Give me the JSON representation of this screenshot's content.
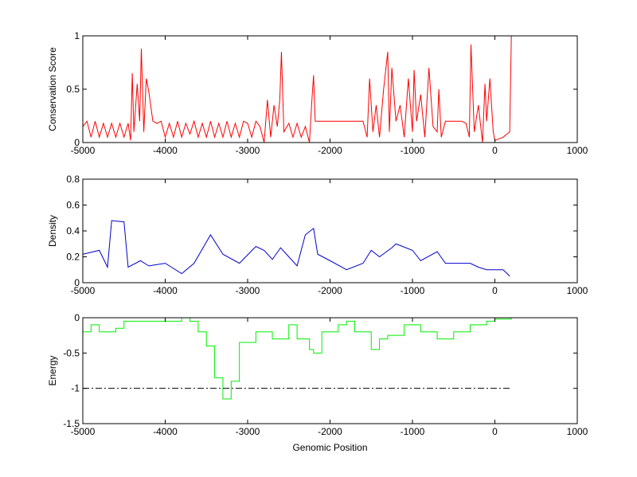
{
  "chart_data": [
    {
      "type": "line",
      "ylabel": "Conservation Score",
      "xlim": [
        -5000,
        1000
      ],
      "xticks": [
        -5000,
        -4000,
        -3000,
        -2000,
        -1000,
        0,
        1000
      ],
      "ylim": [
        0,
        1
      ],
      "yticks": [
        0,
        0.5,
        1
      ],
      "series": [
        {
          "color": "#ff0000",
          "x": [
            -5000,
            -4950,
            -4900,
            -4850,
            -4800,
            -4750,
            -4700,
            -4650,
            -4600,
            -4550,
            -4500,
            -4450,
            -4420,
            -4400,
            -4380,
            -4340,
            -4310,
            -4290,
            -4260,
            -4230,
            -4200,
            -4150,
            -4100,
            -4050,
            -4000,
            -3950,
            -3900,
            -3850,
            -3800,
            -3750,
            -3700,
            -3650,
            -3600,
            -3550,
            -3500,
            -3450,
            -3400,
            -3350,
            -3300,
            -3250,
            -3200,
            -3150,
            -3100,
            -3050,
            -3000,
            -2950,
            -2900,
            -2850,
            -2800,
            -2760,
            -2720,
            -2680,
            -2640,
            -2610,
            -2590,
            -2560,
            -2500,
            -2450,
            -2400,
            -2350,
            -2300,
            -2250,
            -2220,
            -2200,
            -2180,
            -2100,
            -2000,
            -1900,
            -1800,
            -1700,
            -1600,
            -1550,
            -1520,
            -1480,
            -1440,
            -1400,
            -1350,
            -1300,
            -1280,
            -1250,
            -1200,
            -1150,
            -1100,
            -1050,
            -1000,
            -980,
            -950,
            -900,
            -850,
            -800,
            -750,
            -700,
            -680,
            -650,
            -600,
            -500,
            -400,
            -350,
            -310,
            -290,
            -250,
            -200,
            -150,
            -120,
            -100,
            -60,
            -20,
            0,
            100,
            180,
            200
          ],
          "values": [
            0.15,
            0.2,
            0.05,
            0.2,
            0.05,
            0.18,
            0.05,
            0.18,
            0.05,
            0.18,
            0.05,
            0.18,
            0.02,
            0.65,
            0.1,
            0.55,
            0.2,
            0.88,
            0.1,
            0.6,
            0.48,
            0.2,
            0.18,
            0.2,
            0.05,
            0.18,
            0.05,
            0.2,
            0.05,
            0.18,
            0.08,
            0.2,
            0.05,
            0.18,
            0.05,
            0.2,
            0.05,
            0.18,
            0.05,
            0.2,
            0.05,
            0.18,
            0.05,
            0.2,
            0.18,
            0.05,
            0.2,
            0.15,
            0,
            0.4,
            0.05,
            0.35,
            0.15,
            0.4,
            0.85,
            0.1,
            0.18,
            0.05,
            0.18,
            0.05,
            0.15,
            0,
            0.4,
            0.63,
            0.2,
            0.2,
            0.2,
            0.2,
            0.2,
            0.2,
            0.2,
            0.05,
            0.6,
            0.1,
            0.35,
            0.05,
            0.5,
            0.85,
            0.1,
            0.7,
            0.2,
            0.35,
            0.05,
            0.6,
            0.1,
            0.68,
            0.2,
            0.45,
            0.05,
            0.7,
            0.15,
            0.1,
            0.5,
            0.05,
            0.2,
            0.2,
            0.2,
            0.18,
            0.05,
            0.92,
            0.1,
            0.35,
            0,
            0.55,
            0.2,
            0.6,
            0.1,
            0.02,
            0.05,
            0.1,
            1
          ]
        }
      ]
    },
    {
      "type": "line",
      "ylabel": "Density",
      "xlim": [
        -5000,
        1000
      ],
      "xticks": [
        -5000,
        -4000,
        -3000,
        -2000,
        -1000,
        0,
        1000
      ],
      "ylim": [
        0,
        0.8
      ],
      "yticks": [
        0,
        0.2,
        0.4,
        0.6,
        0.8
      ],
      "series": [
        {
          "color": "#0000cc",
          "x": [
            -5000,
            -4800,
            -4700,
            -4650,
            -4500,
            -4450,
            -4300,
            -4200,
            -4000,
            -3800,
            -3650,
            -3450,
            -3300,
            -3100,
            -2900,
            -2800,
            -2700,
            -2600,
            -2500,
            -2400,
            -2300,
            -2200,
            -2150,
            -2000,
            -1800,
            -1600,
            -1500,
            -1400,
            -1250,
            -1200,
            -1000,
            -900,
            -700,
            -600,
            -500,
            -300,
            -200,
            -100,
            100,
            150,
            180
          ],
          "values": [
            0.22,
            0.25,
            0.12,
            0.48,
            0.47,
            0.12,
            0.17,
            0.13,
            0.15,
            0.07,
            0.15,
            0.37,
            0.22,
            0.15,
            0.28,
            0.25,
            0.18,
            0.27,
            0.2,
            0.13,
            0.37,
            0.42,
            0.22,
            0.17,
            0.1,
            0.15,
            0.25,
            0.2,
            0.27,
            0.3,
            0.25,
            0.17,
            0.24,
            0.15,
            0.15,
            0.15,
            0.12,
            0.1,
            0.1,
            0.07,
            0.05
          ]
        }
      ]
    },
    {
      "type": "line",
      "ylabel": "Energy",
      "xlabel": "Genomic Position",
      "xlim": [
        -5000,
        1000
      ],
      "xticks": [
        -5000,
        -4000,
        -3000,
        -2000,
        -1000,
        0,
        1000
      ],
      "ylim": [
        -1.5,
        0
      ],
      "yticks": [
        -1.5,
        -1,
        -0.5,
        0
      ],
      "series": [
        {
          "color": "#00ee00",
          "step": true,
          "x": [
            -5000,
            -4900,
            -4800,
            -4600,
            -4500,
            -4200,
            -3800,
            -3700,
            -3600,
            -3500,
            -3400,
            -3300,
            -3200,
            -3100,
            -2900,
            -2700,
            -2500,
            -2400,
            -2250,
            -2200,
            -2100,
            -1900,
            -1800,
            -1700,
            -1500,
            -1400,
            -1300,
            -1100,
            -900,
            -700,
            -500,
            -300,
            -100,
            0,
            200
          ],
          "values": [
            -0.2,
            -0.1,
            -0.2,
            -0.15,
            -0.05,
            -0.05,
            0,
            -0.05,
            -0.2,
            -0.4,
            -0.85,
            -1.15,
            -0.9,
            -0.35,
            -0.2,
            -0.3,
            -0.1,
            -0.3,
            -0.45,
            -0.5,
            -0.2,
            -0.1,
            -0.05,
            -0.2,
            -0.45,
            -0.3,
            -0.25,
            -0.1,
            -0.2,
            -0.3,
            -0.2,
            -0.1,
            -0.05,
            -0.02,
            0
          ]
        },
        {
          "color": "#000000",
          "dash": "dashdot",
          "x": [
            -5000,
            200
          ],
          "values": [
            -1,
            -1
          ]
        }
      ]
    }
  ]
}
